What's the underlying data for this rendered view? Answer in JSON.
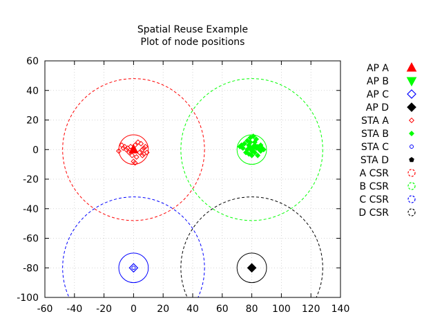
{
  "chart_data": {
    "type": "scatter",
    "title": "Spatial Reuse Example",
    "subtitle": "Plot of node positions",
    "xlabel": "",
    "ylabel": "",
    "xlim": [
      -60,
      140
    ],
    "ylim": [
      -100,
      60
    ],
    "xticks": [
      -60,
      -40,
      -20,
      0,
      20,
      40,
      60,
      80,
      100,
      120,
      140
    ],
    "yticks": [
      -100,
      -80,
      -60,
      -40,
      -20,
      0,
      20,
      40,
      60
    ],
    "grid": true,
    "legend_position": "right",
    "series": [
      {
        "name": "AP A",
        "marker": "triangle-up",
        "color": "#ff0000",
        "filled": true,
        "points": [
          [
            0,
            0
          ]
        ]
      },
      {
        "name": "AP B",
        "marker": "triangle-down",
        "color": "#00ff00",
        "filled": true,
        "points": [
          [
            80,
            0
          ]
        ]
      },
      {
        "name": "AP C",
        "marker": "diamond",
        "color": "#0000ff",
        "filled": false,
        "points": [
          [
            0,
            -80
          ]
        ]
      },
      {
        "name": "AP D",
        "marker": "diamond",
        "color": "#000000",
        "filled": true,
        "points": [
          [
            80,
            -80
          ]
        ]
      },
      {
        "name": "STA A",
        "marker": "diamond-small",
        "color": "#ff0000",
        "filled": false,
        "points": [
          [
            -10,
            -1
          ],
          [
            -8,
            3
          ],
          [
            -6,
            2
          ],
          [
            -5,
            0
          ],
          [
            -4,
            1
          ],
          [
            -3,
            -2
          ],
          [
            -2,
            2
          ],
          [
            -1,
            -4
          ],
          [
            0,
            -8
          ],
          [
            1,
            -9
          ],
          [
            1,
            3
          ],
          [
            2,
            -5
          ],
          [
            3,
            5
          ],
          [
            4,
            -2
          ],
          [
            5,
            4
          ],
          [
            6,
            -4
          ],
          [
            6,
            0
          ],
          [
            7,
            -3
          ],
          [
            7,
            1
          ],
          [
            8,
            2
          ],
          [
            -7,
            1
          ],
          [
            9,
            -2
          ]
        ]
      },
      {
        "name": "STA B",
        "marker": "diamond-small",
        "color": "#00ff00",
        "filled": true,
        "points": [
          [
            72,
            2
          ],
          [
            73,
            3
          ],
          [
            74,
            1
          ],
          [
            75,
            4
          ],
          [
            76,
            -2
          ],
          [
            77,
            0
          ],
          [
            77,
            6
          ],
          [
            78,
            3
          ],
          [
            78,
            -3
          ],
          [
            79,
            5
          ],
          [
            79,
            8
          ],
          [
            80,
            0
          ],
          [
            80,
            -4
          ],
          [
            81,
            2
          ],
          [
            81,
            9
          ],
          [
            82,
            -2
          ],
          [
            82,
            5
          ],
          [
            83,
            7
          ],
          [
            83,
            1
          ],
          [
            84,
            -4
          ],
          [
            84,
            2
          ],
          [
            85,
            0
          ],
          [
            86,
            3
          ],
          [
            86,
            -1
          ],
          [
            87,
            1
          ],
          [
            88,
            0
          ],
          [
            82,
            3
          ]
        ]
      },
      {
        "name": "STA C",
        "marker": "circle-small",
        "color": "#0000ff",
        "filled": false,
        "points": [
          [
            0,
            -80
          ]
        ]
      },
      {
        "name": "STA D",
        "marker": "pentagon-small",
        "color": "#000000",
        "filled": true,
        "points": [
          [
            80,
            -80
          ]
        ]
      }
    ],
    "circles": [
      {
        "group": "A",
        "center": [
          0,
          0
        ],
        "radius": 10,
        "color": "#ff0000",
        "dashed": false
      },
      {
        "group": "B",
        "center": [
          80,
          0
        ],
        "radius": 10,
        "color": "#00ff00",
        "dashed": false
      },
      {
        "group": "C",
        "center": [
          0,
          -80
        ],
        "radius": 10,
        "color": "#0000ff",
        "dashed": false
      },
      {
        "group": "D",
        "center": [
          80,
          -80
        ],
        "radius": 10,
        "color": "#000000",
        "dashed": false
      },
      {
        "name": "A CSR",
        "center": [
          0,
          0
        ],
        "radius": 48,
        "color": "#ff0000",
        "dashed": true
      },
      {
        "name": "B CSR",
        "center": [
          80,
          0
        ],
        "radius": 48,
        "color": "#00ff00",
        "dashed": true
      },
      {
        "name": "C CSR",
        "center": [
          0,
          -80
        ],
        "radius": 48,
        "color": "#0000ff",
        "dashed": true
      },
      {
        "name": "D CSR",
        "center": [
          80,
          -80
        ],
        "radius": 48,
        "color": "#000000",
        "dashed": true
      }
    ]
  }
}
